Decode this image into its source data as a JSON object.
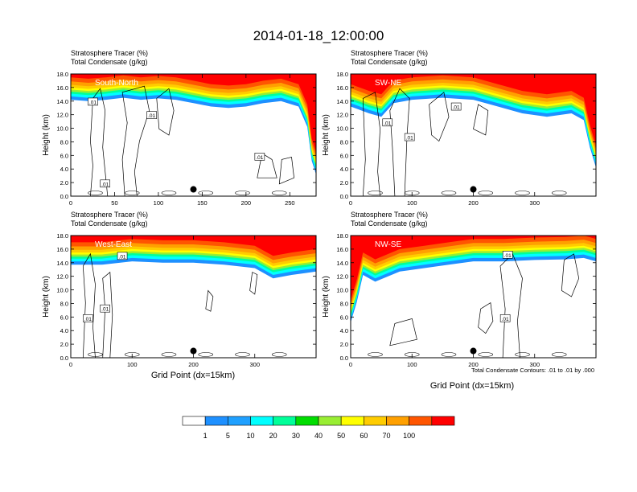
{
  "title": "2014-01-18_12:00:00",
  "x_axis_label": "Grid Point (dx=15km)",
  "contour_info": "Total Condensate Contours: .01 to .01 by .000",
  "colorbar": {
    "labels": [
      "1",
      "5",
      "10",
      "20",
      "30",
      "40",
      "50",
      "60",
      "70",
      "100"
    ],
    "colors": [
      "#ffffff",
      "#1e90ff",
      "#1fa0ff",
      "#00ffff",
      "#00ff99",
      "#00dd00",
      "#99ee33",
      "#ffff00",
      "#ffcc00",
      "#ffa000",
      "#ff5500",
      "#ff0000"
    ]
  },
  "chart_data": [
    {
      "type": "heatmap",
      "panel_label": "South-North",
      "fill_title": "Stratosphere Tracer   (%)",
      "contour_title": "Total Condensate   (g/kg)",
      "ylabel": "Height (km)",
      "xlim": [
        0,
        280
      ],
      "xticks": [
        "0",
        "50",
        "100",
        "150",
        "200",
        "250"
      ],
      "ylim": [
        0,
        18
      ],
      "yticks": [
        "0.0",
        "2.0",
        "4.0",
        "6.0",
        "8.0",
        "10.0",
        "12.0",
        "14.0",
        "16.0",
        "18.0"
      ],
      "contour_labels": [
        ".01",
        ".01",
        ".01",
        ".01"
      ],
      "tropopause_km": [
        [
          0,
          16.0
        ],
        [
          20,
          15.8
        ],
        [
          40,
          16.0
        ],
        [
          60,
          16.3
        ],
        [
          80,
          16.0
        ],
        [
          100,
          16.2
        ],
        [
          120,
          16.0
        ],
        [
          140,
          15.5
        ],
        [
          160,
          15.0
        ],
        [
          180,
          14.8
        ],
        [
          200,
          15.0
        ],
        [
          220,
          15.5
        ],
        [
          240,
          15.8
        ],
        [
          260,
          15.0
        ],
        [
          270,
          12.0
        ],
        [
          275,
          7.0
        ],
        [
          280,
          5.0
        ]
      ],
      "markers": [
        {
          "x": 140,
          "y": 1.0
        }
      ]
    },
    {
      "type": "heatmap",
      "panel_label": "SW-NE",
      "fill_title": "Stratosphere Tracer   (%)",
      "contour_title": "Total Condensate   (g/kg)",
      "ylabel": "Height (km)",
      "xlim": [
        0,
        400
      ],
      "xticks": [
        "0",
        "100",
        "200",
        "300"
      ],
      "ylim": [
        0,
        18
      ],
      "yticks": [
        "0.0",
        "2.0",
        "4.0",
        "6.0",
        "8.0",
        "10.0",
        "12.0",
        "14.0",
        "16.0",
        "18.0"
      ],
      "contour_labels": [
        ".01",
        ".01",
        ".01"
      ],
      "tropopause_km": [
        [
          0,
          15.0
        ],
        [
          30,
          14.0
        ],
        [
          50,
          13.5
        ],
        [
          70,
          15.5
        ],
        [
          100,
          16.0
        ],
        [
          150,
          16.3
        ],
        [
          200,
          16.0
        ],
        [
          240,
          15.0
        ],
        [
          280,
          14.0
        ],
        [
          320,
          13.5
        ],
        [
          360,
          14.0
        ],
        [
          380,
          13.0
        ],
        [
          390,
          9.0
        ],
        [
          400,
          6.0
        ]
      ],
      "markers": [
        {
          "x": 200,
          "y": 1.0
        }
      ]
    },
    {
      "type": "heatmap",
      "panel_label": "West-East",
      "fill_title": "Stratosphere Tracer   (%)",
      "contour_title": "Total Condensate   (g/kg)",
      "ylabel": "Height (km)",
      "xlim": [
        0,
        400
      ],
      "xticks": [
        "0",
        "100",
        "200",
        "300"
      ],
      "ylim": [
        0,
        18
      ],
      "yticks": [
        "0.0",
        "2.0",
        "4.0",
        "6.0",
        "8.0",
        "10.0",
        "12.0",
        "14.0",
        "16.0",
        "18.0"
      ],
      "contour_labels": [
        ".01",
        ".01",
        ".01"
      ],
      "tropopause_km": [
        [
          0,
          15.5
        ],
        [
          50,
          15.5
        ],
        [
          100,
          16.0
        ],
        [
          150,
          15.8
        ],
        [
          200,
          15.8
        ],
        [
          250,
          15.5
        ],
        [
          300,
          15.0
        ],
        [
          330,
          13.5
        ],
        [
          360,
          14.0
        ],
        [
          400,
          14.5
        ]
      ],
      "markers": [
        {
          "x": 200,
          "y": 1.0
        }
      ]
    },
    {
      "type": "heatmap",
      "panel_label": "NW-SE",
      "fill_title": "Stratosphere Tracer   (%)",
      "contour_title": "Total Condensate   (g/kg)",
      "ylabel": "Height (km)",
      "xlim": [
        0,
        400
      ],
      "xticks": [
        "0",
        "100",
        "200",
        "300"
      ],
      "ylim": [
        0,
        18
      ],
      "yticks": [
        "0.0",
        "2.0",
        "4.0",
        "6.0",
        "8.0",
        "10.0",
        "12.0",
        "14.0",
        "16.0",
        "18.0"
      ],
      "contour_labels": [
        ".01",
        ".01"
      ],
      "tropopause_km": [
        [
          0,
          7.0
        ],
        [
          10,
          10.0
        ],
        [
          20,
          14.0
        ],
        [
          40,
          13.0
        ],
        [
          80,
          14.5
        ],
        [
          120,
          15.0
        ],
        [
          160,
          15.5
        ],
        [
          200,
          16.0
        ],
        [
          250,
          16.0
        ],
        [
          300,
          16.2
        ],
        [
          350,
          16.3
        ],
        [
          380,
          16.5
        ],
        [
          400,
          16.0
        ]
      ],
      "markers": [
        {
          "x": 200,
          "y": 1.0
        }
      ]
    }
  ]
}
